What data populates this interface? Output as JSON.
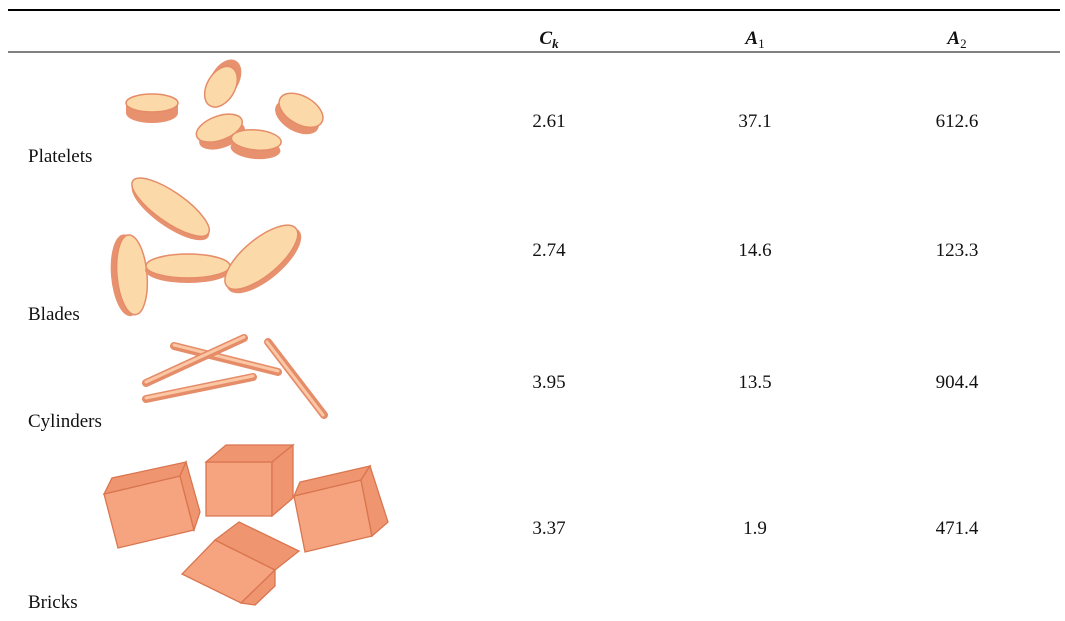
{
  "table": {
    "header": [
      {
        "symbol": "C",
        "subscript": "k"
      },
      {
        "symbol": "A",
        "subscript": "1"
      },
      {
        "symbol": "A",
        "subscript": "2"
      }
    ],
    "rows": [
      [
        "Platelets",
        "2.61",
        "37.1",
        "612.6"
      ],
      [
        "Blades",
        "2.74",
        "14.6",
        "123.3"
      ],
      [
        "Cylinders",
        "3.95",
        "13.5",
        "904.4"
      ],
      [
        "Bricks",
        "3.37",
        "1.9",
        "471.4"
      ]
    ]
  }
}
